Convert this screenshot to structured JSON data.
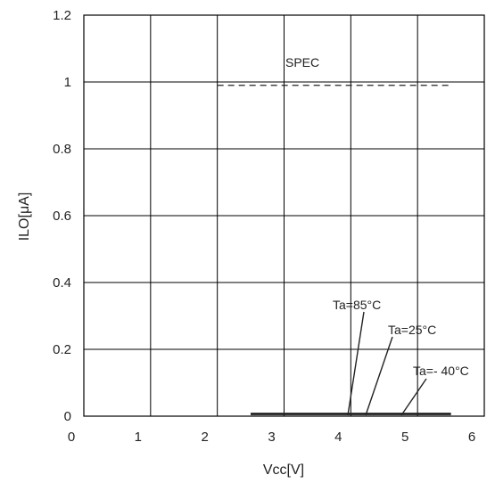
{
  "chart_data": {
    "type": "line",
    "xlabel": "Vcc[V]",
    "ylabel": "ILO[μA]",
    "xlim": [
      0,
      6
    ],
    "ylim": [
      0,
      1.2
    ],
    "x_ticks": [
      "0",
      "1",
      "2",
      "3",
      "4",
      "5",
      "6"
    ],
    "y_ticks": [
      "0",
      "0.2",
      "0.4",
      "0.6",
      "0.8",
      "1",
      "1.2"
    ],
    "grid": true,
    "series": [
      {
        "name": "Ta=85°C",
        "x": [
          2.5,
          5.5
        ],
        "y": [
          0.005,
          0.005
        ]
      },
      {
        "name": "Ta=25°C",
        "x": [
          2.5,
          5.5
        ],
        "y": [
          0.004,
          0.004
        ]
      },
      {
        "name": "Ta=- 40°C",
        "x": [
          2.5,
          5.5
        ],
        "y": [
          0.003,
          0.003
        ]
      }
    ],
    "spec": {
      "label": "SPEC",
      "value": 0.99,
      "x": [
        2.0,
        5.5
      ]
    },
    "colors": {
      "series": "#222222",
      "grid": "#000000",
      "spec": "#222222"
    }
  }
}
